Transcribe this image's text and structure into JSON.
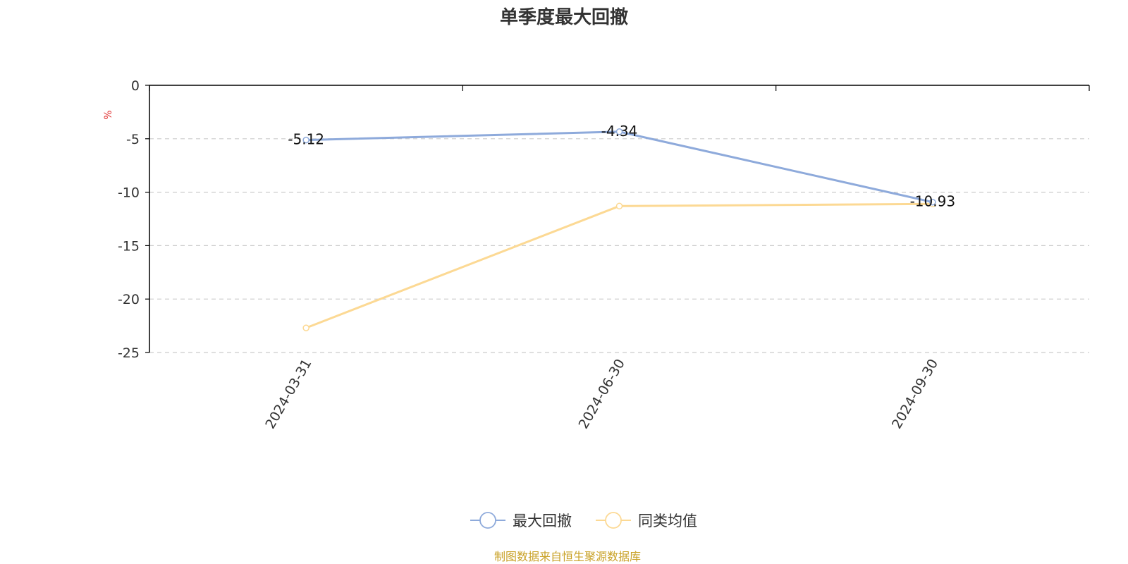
{
  "chart_data": {
    "type": "line",
    "title": "单季度最大回撤",
    "ylabel": "%",
    "xlabel": "",
    "categories": [
      "2024-03-31",
      "2024-06-30",
      "2024-09-30"
    ],
    "series": [
      {
        "name": "最大回撤",
        "values": [
          -5.12,
          -4.34,
          -10.93
        ],
        "color": "#8eaadb",
        "show_labels": true
      },
      {
        "name": "同类均值",
        "values": [
          -22.7,
          -11.3,
          -11.1
        ],
        "color": "#fcd994",
        "show_labels": false
      }
    ],
    "y_ticks": [
      0,
      -5,
      -10,
      -15,
      -20,
      -25
    ],
    "ylim": [
      -25,
      0
    ],
    "grid": true,
    "legend_position": "bottom-center",
    "source_note": "制图数据来自恒生聚源数据库",
    "colors": {
      "unit_label": "#e03030",
      "source_note": "#c9a227",
      "axis": "#000000",
      "grid": "#cccccc",
      "text": "#333333"
    }
  }
}
